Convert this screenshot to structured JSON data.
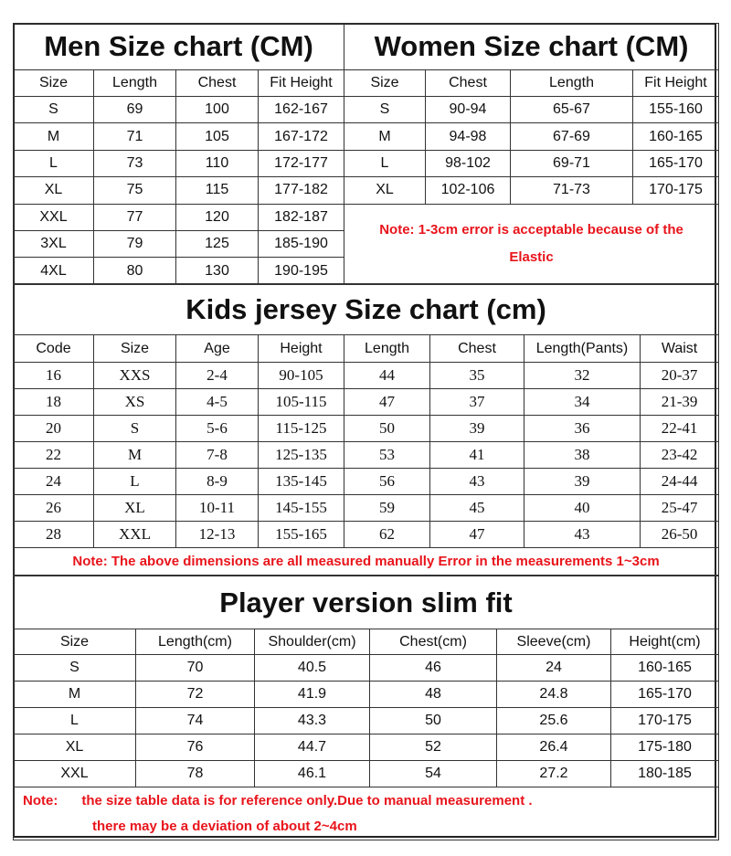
{
  "colors": {
    "note": "#e8141b",
    "border": "#333333",
    "text": "#111111"
  },
  "men": {
    "title": "Men Size chart (CM)",
    "headers": [
      "Size",
      "Length",
      "Chest",
      "Fit Height"
    ],
    "rows": [
      [
        "S",
        "69",
        "100",
        "162-167"
      ],
      [
        "M",
        "71",
        "105",
        "167-172"
      ],
      [
        "L",
        "73",
        "110",
        "172-177"
      ],
      [
        "XL",
        "75",
        "115",
        "177-182"
      ],
      [
        "XXL",
        "77",
        "120",
        "182-187"
      ],
      [
        "3XL",
        "79",
        "125",
        "185-190"
      ],
      [
        "4XL",
        "80",
        "130",
        "190-195"
      ]
    ]
  },
  "women": {
    "title": "Women Size chart (CM)",
    "headers": [
      "Size",
      "Chest",
      "Length",
      "Fit Height"
    ],
    "rows": [
      [
        "S",
        "90-94",
        "65-67",
        "155-160"
      ],
      [
        "M",
        "94-98",
        "67-69",
        "160-165"
      ],
      [
        "L",
        "98-102",
        "69-71",
        "165-170"
      ],
      [
        "XL",
        "102-106",
        "71-73",
        "170-175"
      ]
    ],
    "note_line1": "Note: 1-3cm error is acceptable because of the",
    "note_line2": "Elastic"
  },
  "kids": {
    "title": "Kids jersey Size chart (cm)",
    "headers": [
      "Code",
      "Size",
      "Age",
      "Height",
      "Length",
      "Chest",
      "Length(Pants)",
      "Waist"
    ],
    "rows": [
      [
        "16",
        "XXS",
        "2-4",
        "90-105",
        "44",
        "35",
        "32",
        "20-37"
      ],
      [
        "18",
        "XS",
        "4-5",
        "105-115",
        "47",
        "37",
        "34",
        "21-39"
      ],
      [
        "20",
        "S",
        "5-6",
        "115-125",
        "50",
        "39",
        "36",
        "22-41"
      ],
      [
        "22",
        "M",
        "7-8",
        "125-135",
        "53",
        "41",
        "38",
        "23-42"
      ],
      [
        "24",
        "L",
        "8-9",
        "135-145",
        "56",
        "43",
        "39",
        "24-44"
      ],
      [
        "26",
        "XL",
        "10-11",
        "145-155",
        "59",
        "45",
        "40",
        "25-47"
      ],
      [
        "28",
        "XXL",
        "12-13",
        "155-165",
        "62",
        "47",
        "43",
        "26-50"
      ]
    ],
    "note": "Note: The above dimensions are all measured manually Error in the measurements 1~3cm"
  },
  "player": {
    "title": "Player version slim fit",
    "headers": [
      "Size",
      "Length(cm)",
      "Shoulder(cm)",
      "Chest(cm)",
      "Sleeve(cm)",
      "Height(cm)"
    ],
    "rows": [
      [
        "S",
        "70",
        "40.5",
        "46",
        "24",
        "160-165"
      ],
      [
        "M",
        "72",
        "41.9",
        "48",
        "24.8",
        "165-170"
      ],
      [
        "L",
        "74",
        "43.3",
        "50",
        "25.6",
        "170-175"
      ],
      [
        "XL",
        "76",
        "44.7",
        "52",
        "26.4",
        "175-180"
      ],
      [
        "XXL",
        "78",
        "46.1",
        "54",
        "27.2",
        "180-185"
      ]
    ],
    "note_label": "Note:",
    "note_line1": "the size table data is for reference only.Due to manual measurement .",
    "note_line2": "there may be a deviation of about 2~4cm"
  }
}
